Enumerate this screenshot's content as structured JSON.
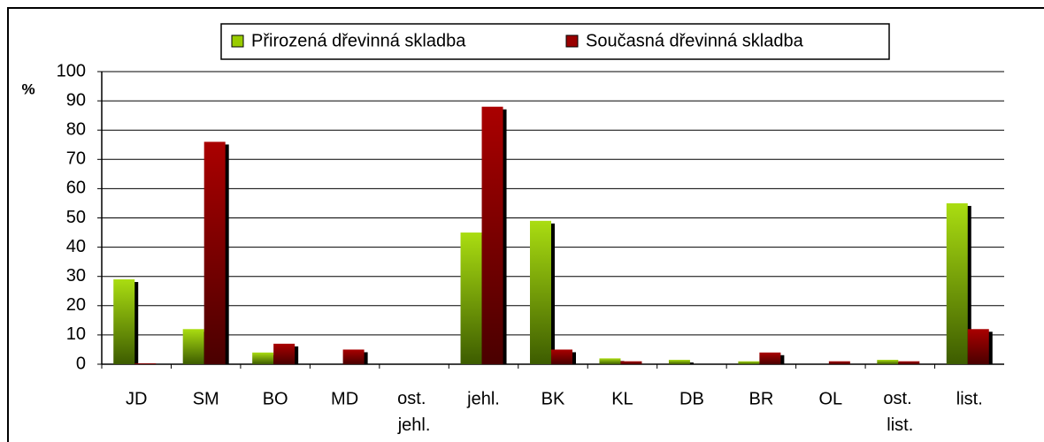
{
  "chart_data": {
    "type": "bar",
    "y_label": "%",
    "categories": [
      "JD",
      "SM",
      "BO",
      "MD",
      "ost. jehl.",
      "jehl.",
      "BK",
      "KL",
      "DB",
      "BR",
      "OL",
      "ost. list.",
      "list."
    ],
    "series": [
      {
        "name": "Přirozená dřevinná skladba",
        "color": "#99cc00",
        "values": [
          29,
          12,
          4,
          0,
          0,
          45,
          49,
          2,
          1.5,
          1,
          0,
          1.5,
          55
        ]
      },
      {
        "name": "Současná dřevinná skladba",
        "color": "#990000",
        "values": [
          0.3,
          76,
          7,
          5,
          0,
          88,
          5,
          1,
          0,
          4,
          1,
          1,
          12
        ]
      }
    ],
    "ylim": [
      0,
      100
    ],
    "yticks": [
      0,
      10,
      20,
      30,
      40,
      50,
      60,
      70,
      80,
      90,
      100
    ],
    "grid": true
  }
}
